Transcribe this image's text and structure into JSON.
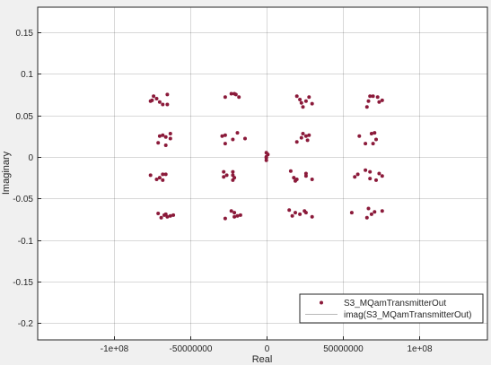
{
  "chart_data": {
    "type": "scatter",
    "xlabel": "Real",
    "ylabel": "Imaginary",
    "xlim": [
      -150000000.0,
      145000000.0
    ],
    "ylim": [
      -0.22,
      0.18
    ],
    "x_ticks": [
      {
        "v": -100000000.0,
        "label": "-1e+08"
      },
      {
        "v": -50000000.0,
        "label": "-50000000"
      },
      {
        "v": 0,
        "label": "0"
      },
      {
        "v": 50000000.0,
        "label": "50000000"
      },
      {
        "v": 100000000.0,
        "label": "1e+08"
      }
    ],
    "y_ticks": [
      {
        "v": 0.15,
        "label": "0.15"
      },
      {
        "v": 0.1,
        "label": "0.1"
      },
      {
        "v": 0.05,
        "label": "0.05"
      },
      {
        "v": 0,
        "label": "0"
      },
      {
        "v": -0.05,
        "label": "-0.05"
      },
      {
        "v": -0.1,
        "label": "-0.1"
      },
      {
        "v": -0.15,
        "label": "-0.15"
      },
      {
        "v": -0.2,
        "label": "-0.2"
      }
    ],
    "grid": true,
    "legend_position": "bottom-right",
    "series": [
      {
        "name": "S3_MQamTransmitterOut",
        "color": "#8b1a3a",
        "marker": "dot",
        "points": [
          [
            -76000000.0,
            0.067
          ],
          [
            -74000000.0,
            0.073
          ],
          [
            -72000000.0,
            0.07
          ],
          [
            -70000000.0,
            0.066
          ],
          [
            -68000000.0,
            0.063
          ],
          [
            -65000000.0,
            0.075
          ],
          [
            -65000000.0,
            0.063
          ],
          [
            -75000000.0,
            0.068
          ],
          [
            -27000000.0,
            0.072
          ],
          [
            -23000000.0,
            0.076
          ],
          [
            -21000000.0,
            0.076
          ],
          [
            -20000000.0,
            0.075
          ],
          [
            -18000000.0,
            0.072
          ],
          [
            20000000.0,
            0.073
          ],
          [
            22000000.0,
            0.069
          ],
          [
            23000000.0,
            0.065
          ],
          [
            24000000.0,
            0.06
          ],
          [
            26000000.0,
            0.067
          ],
          [
            28000000.0,
            0.072
          ],
          [
            30000000.0,
            0.064
          ],
          [
            66000000.0,
            0.06
          ],
          [
            67000000.0,
            0.067
          ],
          [
            68000000.0,
            0.073
          ],
          [
            70000000.0,
            0.073
          ],
          [
            73000000.0,
            0.072
          ],
          [
            74000000.0,
            0.066
          ],
          [
            76000000.0,
            0.068
          ],
          [
            -70000000.0,
            0.025
          ],
          [
            -68000000.0,
            0.026
          ],
          [
            -66000000.0,
            0.024
          ],
          [
            -63000000.0,
            0.028
          ],
          [
            -63000000.0,
            0.022
          ],
          [
            -71000000.0,
            0.017
          ],
          [
            -66000000.0,
            0.014
          ],
          [
            -29000000.0,
            0.025
          ],
          [
            -27000000.0,
            0.026
          ],
          [
            -22000000.0,
            0.021
          ],
          [
            -19000000.0,
            0.029
          ],
          [
            -14000000.0,
            0.022
          ],
          [
            -27000000.0,
            0.016
          ],
          [
            23000000.0,
            0.023
          ],
          [
            24000000.0,
            0.028
          ],
          [
            26000000.0,
            0.025
          ],
          [
            27000000.0,
            0.02
          ],
          [
            28000000.0,
            0.026
          ],
          [
            20000000.0,
            0.018
          ],
          [
            61000000.0,
            0.025
          ],
          [
            65000000.0,
            0.016
          ],
          [
            69000000.0,
            0.028
          ],
          [
            71000000.0,
            0.029
          ],
          [
            72000000.0,
            0.021
          ],
          [
            70000000.0,
            0.016
          ],
          [
            -76000000.0,
            -0.022
          ],
          [
            -72000000.0,
            -0.027
          ],
          [
            -70000000.0,
            -0.025
          ],
          [
            -68000000.0,
            -0.021
          ],
          [
            -66000000.0,
            -0.021
          ],
          [
            -68000000.0,
            -0.028
          ],
          [
            -28000000.0,
            -0.018
          ],
          [
            -28000000.0,
            -0.024
          ],
          [
            -26000000.0,
            -0.022
          ],
          [
            -22000000.0,
            -0.018
          ],
          [
            -22000000.0,
            -0.022
          ],
          [
            -21000000.0,
            -0.025
          ],
          [
            -22000000.0,
            -0.028
          ],
          [
            16000000.0,
            -0.017
          ],
          [
            18000000.0,
            -0.025
          ],
          [
            19000000.0,
            -0.029
          ],
          [
            20000000.0,
            -0.027
          ],
          [
            26000000.0,
            -0.023
          ],
          [
            26000000.0,
            -0.02
          ],
          [
            30000000.0,
            -0.027
          ],
          [
            58000000.0,
            -0.024
          ],
          [
            60000000.0,
            -0.021
          ],
          [
            65000000.0,
            -0.016
          ],
          [
            68000000.0,
            -0.018
          ],
          [
            68000000.0,
            -0.026
          ],
          [
            72000000.0,
            -0.028
          ],
          [
            74000000.0,
            -0.02
          ],
          [
            76000000.0,
            -0.023
          ],
          [
            -71000000.0,
            -0.068
          ],
          [
            -69000000.0,
            -0.073
          ],
          [
            -67000000.0,
            -0.07
          ],
          [
            -65000000.0,
            -0.072
          ],
          [
            -63000000.0,
            -0.071
          ],
          [
            -61000000.0,
            -0.07
          ],
          [
            -66000000.0,
            -0.069
          ],
          [
            -27000000.0,
            -0.074
          ],
          [
            -23000000.0,
            -0.065
          ],
          [
            -21000000.0,
            -0.067
          ],
          [
            -21000000.0,
            -0.072
          ],
          [
            -19000000.0,
            -0.071
          ],
          [
            -17000000.0,
            -0.07
          ],
          [
            15000000.0,
            -0.064
          ],
          [
            17000000.0,
            -0.071
          ],
          [
            19000000.0,
            -0.067
          ],
          [
            22000000.0,
            -0.069
          ],
          [
            25000000.0,
            -0.065
          ],
          [
            26000000.0,
            -0.067
          ],
          [
            30000000.0,
            -0.072
          ],
          [
            56000000.0,
            -0.067
          ],
          [
            66000000.0,
            -0.073
          ],
          [
            67000000.0,
            -0.062
          ],
          [
            69000000.0,
            -0.069
          ],
          [
            71000000.0,
            -0.066
          ],
          [
            76000000.0,
            -0.065
          ],
          [
            0,
            0.005
          ],
          [
            0,
            0
          ],
          [
            0,
            -0.004
          ],
          [
            1000000.0,
            0.003
          ],
          [
            0,
            -0.001
          ]
        ]
      },
      {
        "name": "imag(S3_MQamTransmitterOut)",
        "color": "#b8b8b8",
        "marker": "line",
        "points": []
      }
    ]
  }
}
